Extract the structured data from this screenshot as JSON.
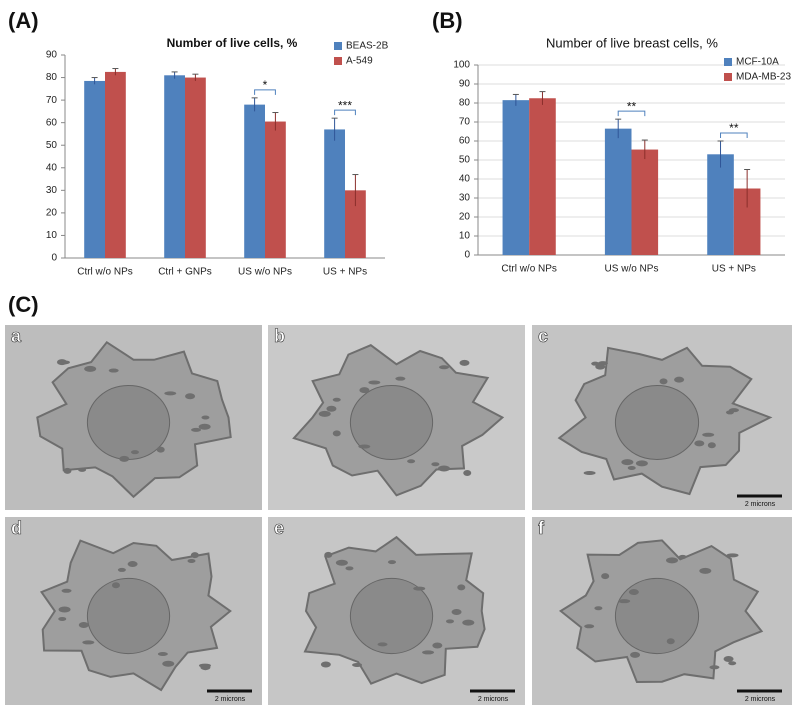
{
  "chart_data": [
    {
      "type": "bar",
      "label": "(A)",
      "title": "Number of live cells, %",
      "categories": [
        "Ctrl w/o NPs",
        "Ctrl + GNPs",
        "US w/o NPs",
        "US + NPs"
      ],
      "series": [
        {
          "name": "BEAS-2B",
          "color": "#4f81bd",
          "values": [
            78.5,
            81,
            68,
            57
          ],
          "errors": [
            1.5,
            1.5,
            3,
            5
          ]
        },
        {
          "name": "A-549",
          "color": "#c0504d",
          "values": [
            82.5,
            80,
            60.5,
            30
          ],
          "errors": [
            1.5,
            1.5,
            4,
            7
          ]
        }
      ],
      "significance": [
        null,
        null,
        "*",
        "***"
      ],
      "ylim": [
        0,
        90
      ],
      "yticks": [
        0,
        10,
        20,
        30,
        40,
        50,
        60,
        70,
        80,
        90
      ],
      "grid": false
    },
    {
      "type": "bar",
      "label": "(B)",
      "title": "Number of live breast cells, %",
      "categories": [
        "Ctrl w/o NPs",
        "US w/o NPs",
        "US + NPs"
      ],
      "series": [
        {
          "name": "MCF-10A",
          "color": "#4f81bd",
          "values": [
            81.5,
            66.5,
            53
          ],
          "errors": [
            3,
            5,
            7
          ]
        },
        {
          "name": "MDA-MB-23",
          "color": "#c0504d",
          "values": [
            82.5,
            55.5,
            35
          ],
          "errors": [
            3.5,
            5,
            10
          ]
        }
      ],
      "significance": [
        null,
        "**",
        "**"
      ],
      "ylim": [
        0,
        100
      ],
      "yticks": [
        0,
        10,
        20,
        30,
        40,
        50,
        60,
        70,
        80,
        90,
        100
      ],
      "grid": true
    }
  ],
  "micrographs": {
    "label": "(C)",
    "images": [
      {
        "letter": "a"
      },
      {
        "letter": "b"
      },
      {
        "letter": "c",
        "scale": "2 microns"
      },
      {
        "letter": "d",
        "scale": "2 microns"
      },
      {
        "letter": "e",
        "scale": "2 microns"
      },
      {
        "letter": "f",
        "scale": "2 microns"
      }
    ]
  }
}
